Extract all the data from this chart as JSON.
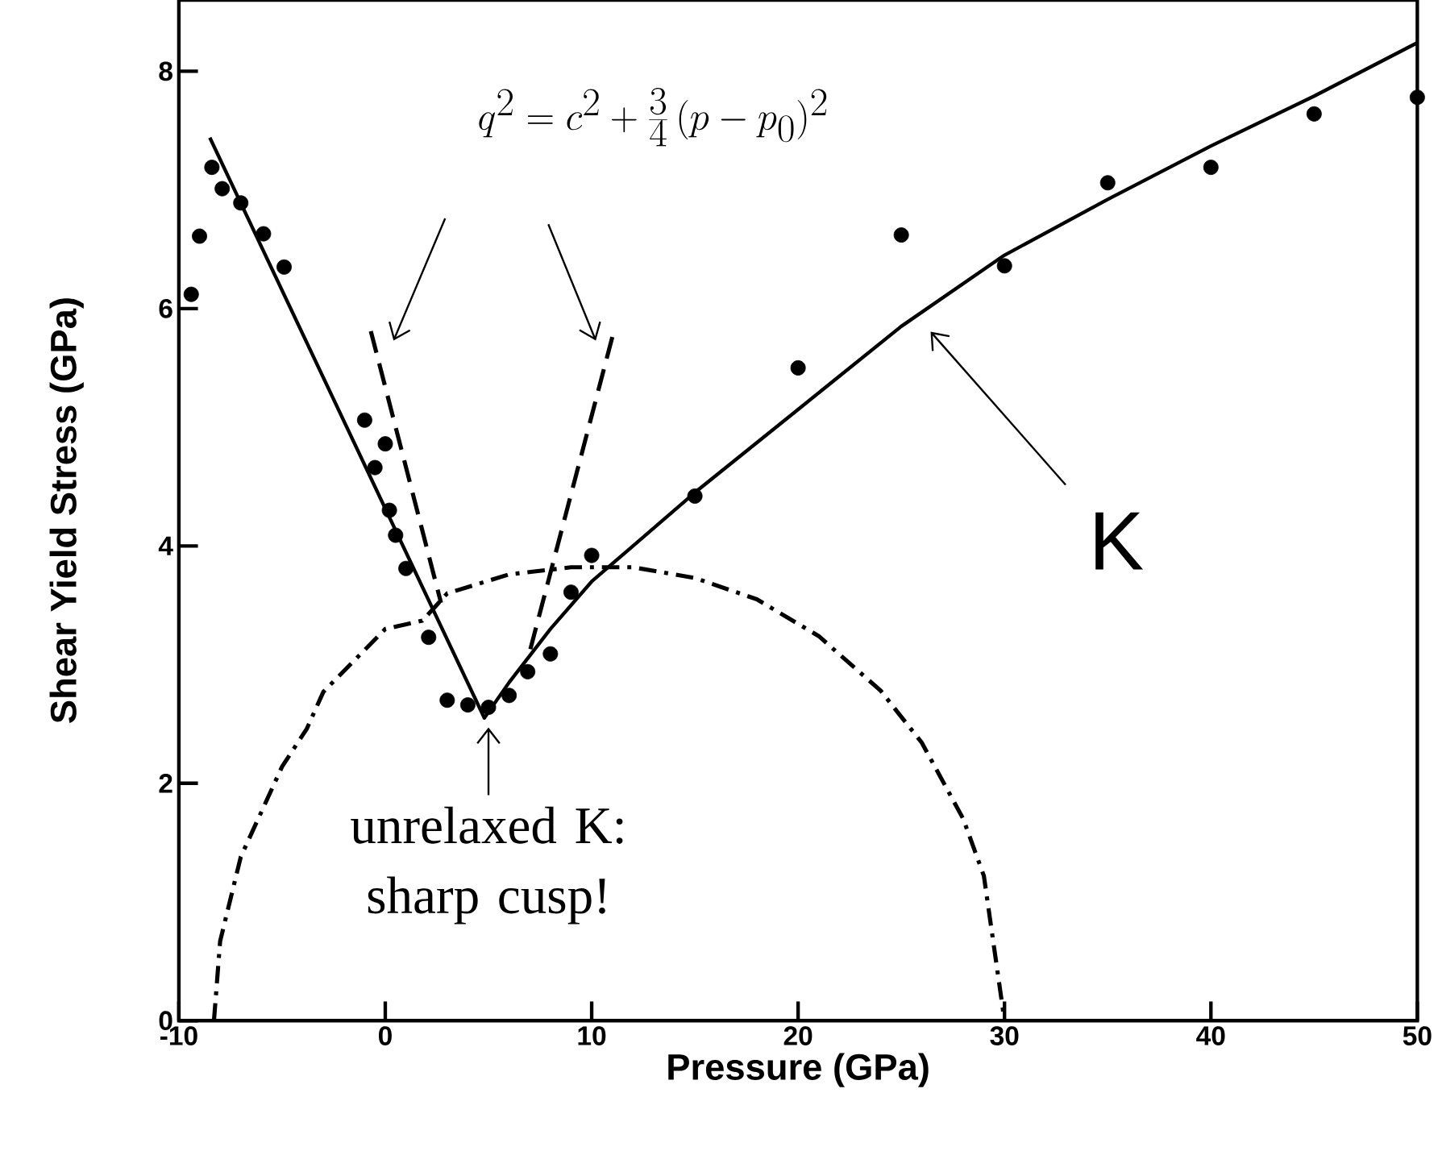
{
  "chart_data": {
    "type": "scatter",
    "xlabel": "Pressure (GPa)",
    "ylabel": "Shear Yield Stress (GPa)",
    "xlim": [
      -10,
      50
    ],
    "ylim": [
      0,
      8.6
    ],
    "xticks": [
      -10,
      0,
      10,
      20,
      30,
      40,
      50
    ],
    "yticks": [
      0,
      2,
      4,
      6,
      8
    ],
    "grid": false,
    "series": [
      {
        "type": "scatter",
        "color": "#000000",
        "marker": "circle",
        "x": [
          -9.4,
          -9.0,
          -8.4,
          -7.9,
          -7.0,
          -5.9,
          -4.9,
          -1.0,
          -0.5,
          0.0,
          0.2,
          0.5,
          1.0,
          2.1,
          3.0,
          4.0,
          5.0,
          6.0,
          6.9,
          8.0,
          9.0,
          10.0,
          15.0,
          20.0,
          25.0,
          30.0,
          35.0,
          40.0,
          45.0,
          50.0
        ],
        "values": [
          6.12,
          6.61,
          7.19,
          7.01,
          6.89,
          6.63,
          6.35,
          5.06,
          4.66,
          4.86,
          4.3,
          4.09,
          3.81,
          3.23,
          2.7,
          2.66,
          2.64,
          2.74,
          2.94,
          3.09,
          3.61,
          3.92,
          4.42,
          5.5,
          6.62,
          6.36,
          7.06,
          7.19,
          7.64,
          7.78
        ]
      },
      {
        "type": "line",
        "color": "#000000",
        "line_style": "solid",
        "x": [
          -8.5,
          4.8,
          6,
          8,
          10,
          12,
          15,
          20,
          25,
          30,
          35,
          40,
          45,
          50
        ],
        "values": [
          7.44,
          2.55,
          2.85,
          3.3,
          3.7,
          4.0,
          4.45,
          5.15,
          5.85,
          6.45,
          6.92,
          7.37,
          7.79,
          8.24
        ]
      },
      {
        "type": "line",
        "color": "#000000",
        "line_style": "dashed",
        "x": [
          -0.7,
          2.7
        ],
        "values": [
          5.81,
          3.52
        ]
      },
      {
        "type": "line",
        "color": "#000000",
        "line_style": "dashed",
        "x": [
          11.0,
          7.0
        ],
        "values": [
          5.76,
          3.11
        ]
      },
      {
        "type": "line",
        "color": "#000000",
        "line_style": "dashdot",
        "x": [
          -8.3,
          -8,
          -7,
          -5,
          -3.8,
          -3,
          0,
          1.8,
          3,
          6,
          9,
          12,
          15,
          18,
          21,
          24,
          26,
          28,
          29,
          30
        ],
        "values": [
          0,
          0.67,
          1.38,
          2.14,
          2.46,
          2.77,
          3.3,
          3.37,
          3.6,
          3.76,
          3.82,
          3.82,
          3.73,
          3.55,
          3.24,
          2.78,
          2.34,
          1.7,
          1.22,
          0
        ]
      }
    ],
    "annotations": [
      "q^2 = c^2 + \\frac{3}{4}\\,(p - p_0)^2",
      "K",
      {
        "text": "unrelaxed K: sharp cusp!",
        "x": 5.0,
        "y": 2.55
      }
    ]
  }
}
